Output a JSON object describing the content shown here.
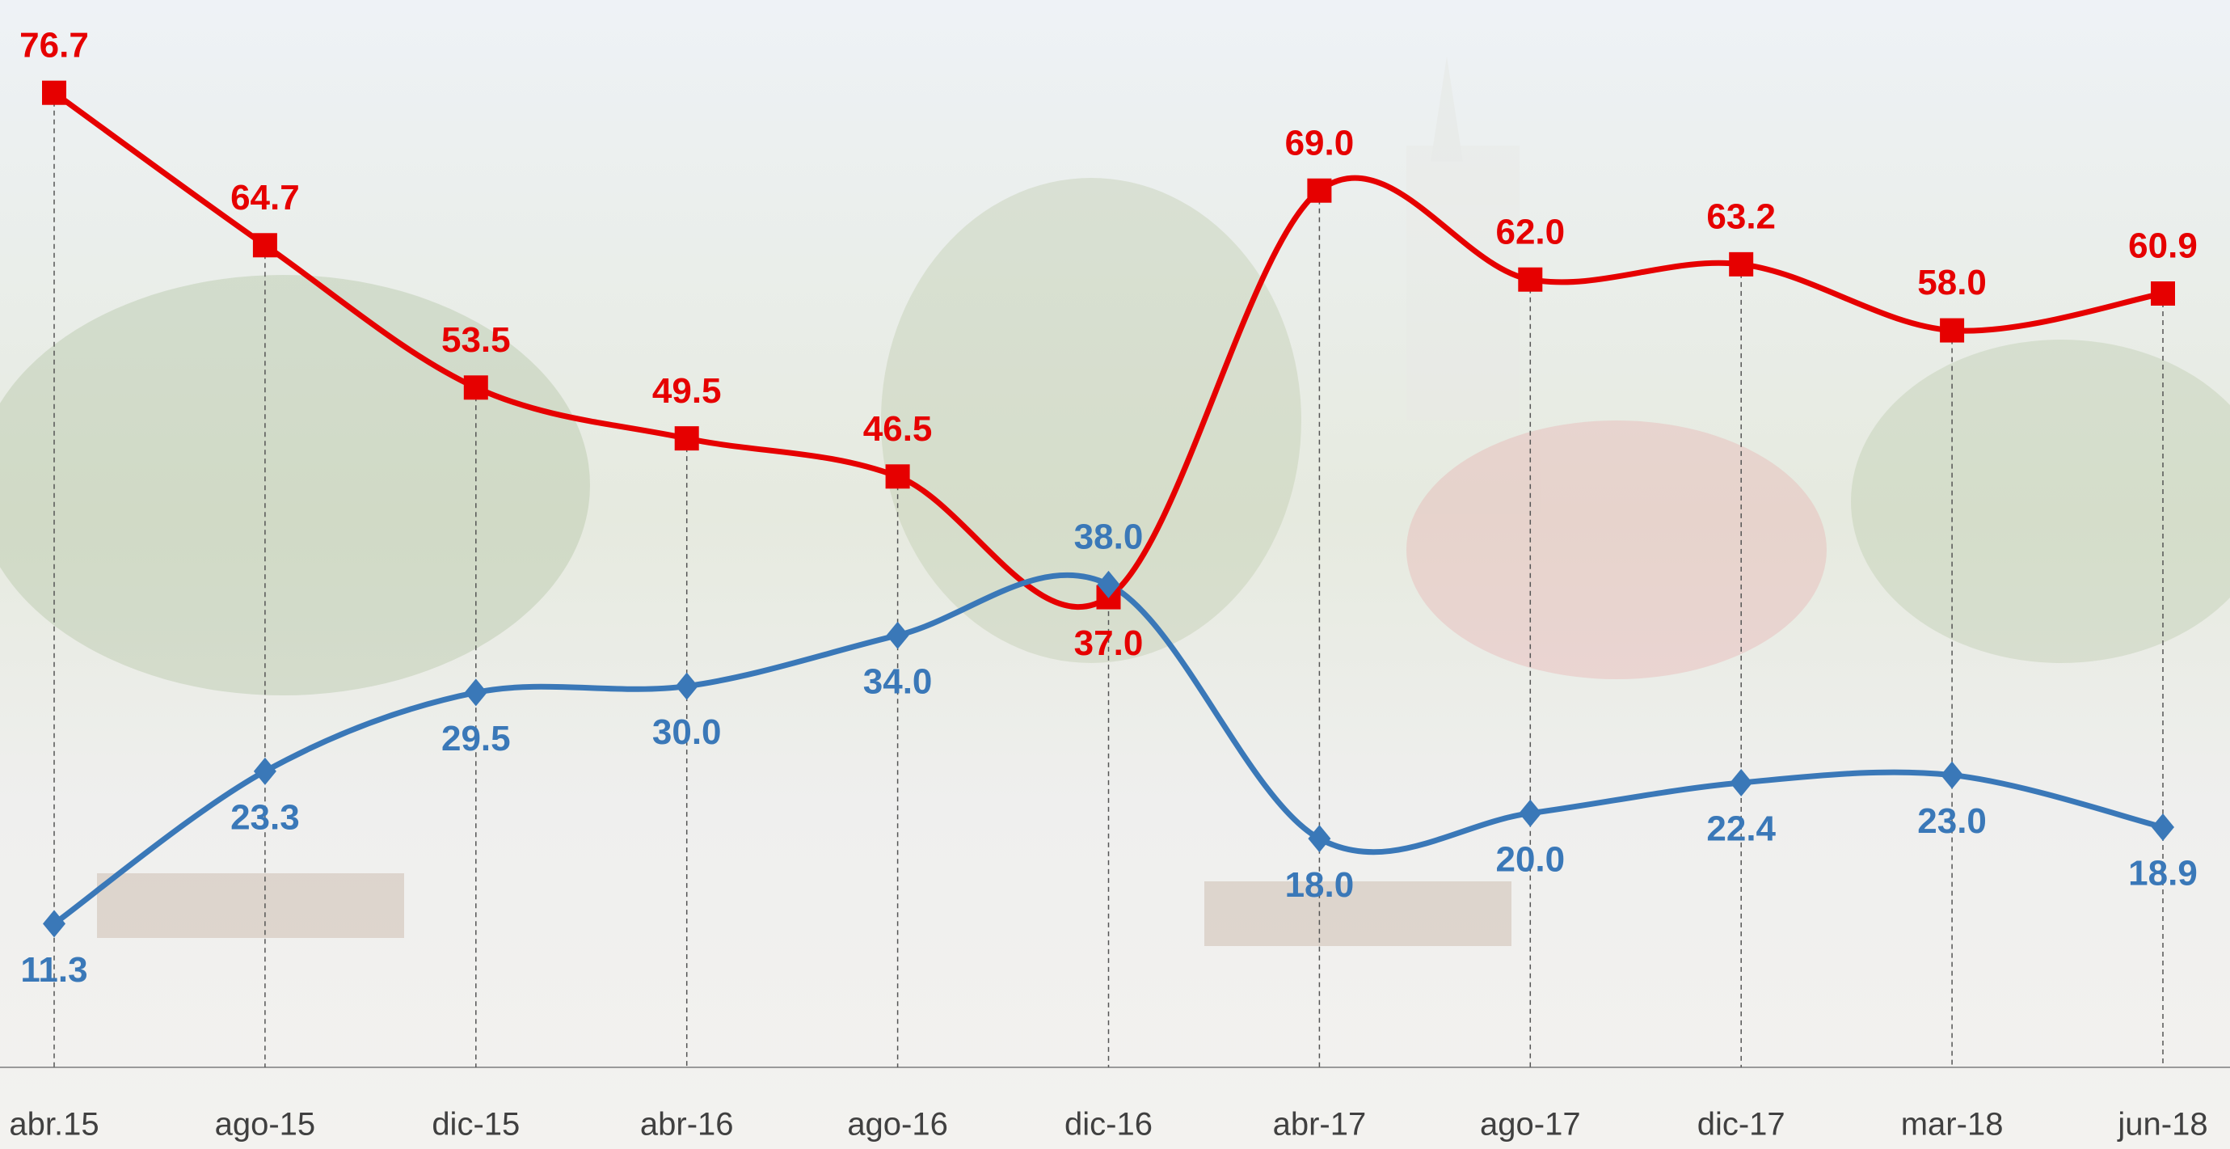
{
  "chart_data": {
    "type": "line",
    "categories": [
      "abr.15",
      "ago-15",
      "dic-15",
      "abr-16",
      "ago-16",
      "dic-16",
      "abr-17",
      "ago-17",
      "dic-17",
      "mar-18",
      "jun-18"
    ],
    "series": [
      {
        "color": "#e60000",
        "marker": "square",
        "values": [
          76.7,
          64.7,
          53.5,
          49.5,
          46.5,
          37.0,
          69.0,
          62.0,
          63.2,
          58.0,
          60.9
        ],
        "value_labels": [
          "76.7",
          "64.7",
          "53.5",
          "49.5",
          "46.5",
          "37.0",
          "69.0",
          "62.0",
          "63.2",
          "58.0",
          "60.9"
        ]
      },
      {
        "color": "#3a78b8",
        "marker": "diamond",
        "values": [
          11.3,
          23.3,
          29.5,
          30.0,
          34.0,
          38.0,
          18.0,
          20.0,
          22.4,
          23.0,
          18.9
        ],
        "value_labels": [
          "11.3",
          "23.3",
          "29.5",
          "30.0",
          "34.0",
          "38.0",
          "18.0",
          "20.0",
          "22.4",
          "23.0",
          "18.9"
        ]
      }
    ],
    "ylim": [
      0,
      84
    ],
    "smooth": true,
    "drop_lines": true
  }
}
